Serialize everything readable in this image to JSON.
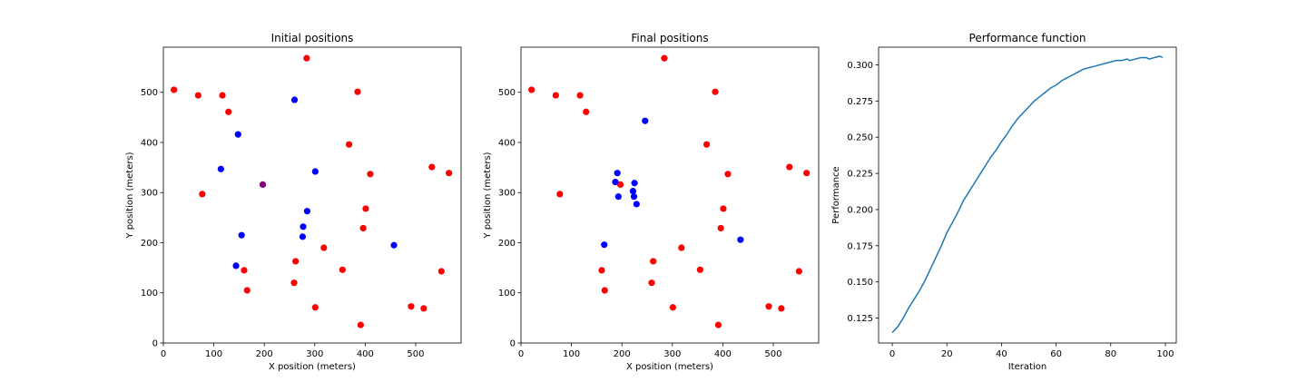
{
  "chart_data": [
    {
      "type": "scatter",
      "title": "Initial positions",
      "xlabel": "X position (meters)",
      "ylabel": "Y position (meters)",
      "xlim": [
        0,
        590
      ],
      "ylim": [
        0,
        590
      ],
      "xticks": [
        0,
        100,
        200,
        300,
        400,
        500
      ],
      "yticks": [
        0,
        100,
        200,
        300,
        400,
        500
      ],
      "grid": false,
      "series": [
        {
          "color": "#ff0000",
          "points": [
            [
              21,
              505
            ],
            [
              69,
              494
            ],
            [
              117,
              494
            ],
            [
              129,
              461
            ],
            [
              284,
              568
            ],
            [
              385,
              501
            ],
            [
              368,
              396
            ],
            [
              410,
              337
            ],
            [
              532,
              351
            ],
            [
              566,
              339
            ],
            [
              77,
              297
            ],
            [
              401,
              268
            ],
            [
              396,
              229
            ],
            [
              318,
              190
            ],
            [
              262,
              163
            ],
            [
              160,
              145
            ],
            [
              355,
              146
            ],
            [
              166,
              105
            ],
            [
              259,
              120
            ],
            [
              551,
              143
            ],
            [
              491,
              73
            ],
            [
              516,
              69
            ],
            [
              301,
              71
            ],
            [
              391,
              36
            ]
          ]
        },
        {
          "color": "#0000ff",
          "points": [
            [
              260,
              485
            ],
            [
              148,
              416
            ],
            [
              114,
              347
            ],
            [
              301,
              342
            ],
            [
              285,
              263
            ],
            [
              277,
              232
            ],
            [
              276,
              212
            ],
            [
              155,
              215
            ],
            [
              144,
              154
            ],
            [
              457,
              195
            ]
          ]
        },
        {
          "color": "#800080",
          "points": [
            [
              197,
              316
            ]
          ]
        }
      ]
    },
    {
      "type": "scatter",
      "title": "Final positions",
      "xlabel": "X position (meters)",
      "ylabel": "Y position (meters)",
      "xlim": [
        0,
        590
      ],
      "ylim": [
        0,
        590
      ],
      "xticks": [
        0,
        100,
        200,
        300,
        400,
        500
      ],
      "yticks": [
        0,
        100,
        200,
        300,
        400,
        500
      ],
      "grid": false,
      "series": [
        {
          "color": "#ff0000",
          "points": [
            [
              21,
              505
            ],
            [
              69,
              494
            ],
            [
              117,
              494
            ],
            [
              129,
              461
            ],
            [
              284,
              568
            ],
            [
              385,
              501
            ],
            [
              368,
              396
            ],
            [
              410,
              337
            ],
            [
              532,
              351
            ],
            [
              566,
              339
            ],
            [
              77,
              297
            ],
            [
              401,
              268
            ],
            [
              396,
              229
            ],
            [
              318,
              190
            ],
            [
              262,
              163
            ],
            [
              160,
              145
            ],
            [
              355,
              146
            ],
            [
              166,
              105
            ],
            [
              259,
              120
            ],
            [
              551,
              143
            ],
            [
              491,
              73
            ],
            [
              516,
              69
            ],
            [
              301,
              71
            ],
            [
              391,
              36
            ],
            [
              197,
              316
            ]
          ]
        },
        {
          "color": "#0000ff",
          "points": [
            [
              246,
              443
            ],
            [
              191,
              339
            ],
            [
              187,
              321
            ],
            [
              225,
              319
            ],
            [
              193,
              292
            ],
            [
              222,
              303
            ],
            [
              224,
              292
            ],
            [
              229,
              277
            ],
            [
              165,
              196
            ],
            [
              435,
              206
            ]
          ]
        }
      ]
    },
    {
      "type": "line",
      "title": "Performance function",
      "xlabel": "Iteration",
      "ylabel": "Performance",
      "xlim": [
        -5,
        104
      ],
      "ylim": [
        0.1078,
        0.3122
      ],
      "xticks": [
        0,
        20,
        40,
        60,
        80,
        100
      ],
      "yticks": [
        0.125,
        0.15,
        0.175,
        0.2,
        0.225,
        0.25,
        0.275,
        0.3
      ],
      "ytick_labels": [
        "0.125",
        "0.150",
        "0.175",
        "0.200",
        "0.225",
        "0.250",
        "0.275",
        "0.300"
      ],
      "grid": false,
      "series": [
        {
          "color": "#1f77b4",
          "x": [
            0,
            2,
            4,
            6,
            8,
            10,
            12,
            14,
            16,
            18,
            20,
            22,
            24,
            26,
            28,
            30,
            32,
            34,
            36,
            38,
            40,
            42,
            44,
            46,
            48,
            50,
            52,
            54,
            56,
            58,
            60,
            62,
            64,
            66,
            68,
            70,
            72,
            74,
            76,
            78,
            80,
            82,
            84,
            86,
            87,
            89,
            91,
            93,
            94,
            96,
            98,
            99
          ],
          "values": [
            0.115,
            0.119,
            0.125,
            0.132,
            0.138,
            0.144,
            0.151,
            0.159,
            0.167,
            0.175,
            0.184,
            0.191,
            0.198,
            0.206,
            0.212,
            0.218,
            0.224,
            0.23,
            0.236,
            0.241,
            0.247,
            0.252,
            0.258,
            0.263,
            0.267,
            0.271,
            0.275,
            0.278,
            0.281,
            0.284,
            0.286,
            0.289,
            0.291,
            0.293,
            0.295,
            0.297,
            0.298,
            0.299,
            0.3,
            0.301,
            0.302,
            0.303,
            0.303,
            0.304,
            0.303,
            0.304,
            0.305,
            0.305,
            0.304,
            0.305,
            0.306,
            0.305
          ]
        }
      ]
    }
  ]
}
